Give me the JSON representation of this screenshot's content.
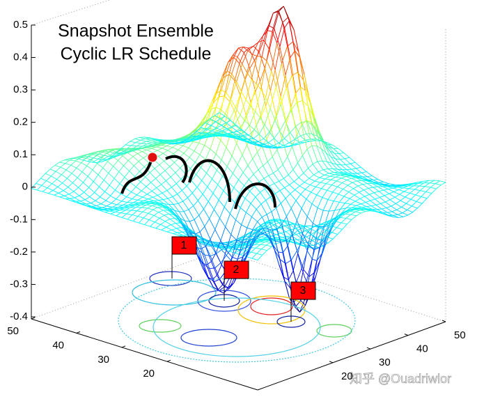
{
  "chart_data": {
    "type": "surface3d",
    "title": [
      "Snapshot Ensemble",
      "Cyclic LR Schedule"
    ],
    "annotations": [
      "1",
      "2",
      "3"
    ],
    "watermark": "知乎 @Ouadriwlor",
    "zlim": [
      -0.4,
      0.5
    ],
    "zticks": [
      -0.4,
      -0.3,
      -0.2,
      -0.1,
      0,
      0.1,
      0.2,
      0.3,
      0.4,
      0.5
    ],
    "xlim": [
      0,
      50
    ],
    "xticks": [
      20,
      30,
      40,
      50
    ],
    "ylim": [
      0,
      50
    ],
    "yticks": [
      20,
      30,
      40,
      50
    ]
  }
}
